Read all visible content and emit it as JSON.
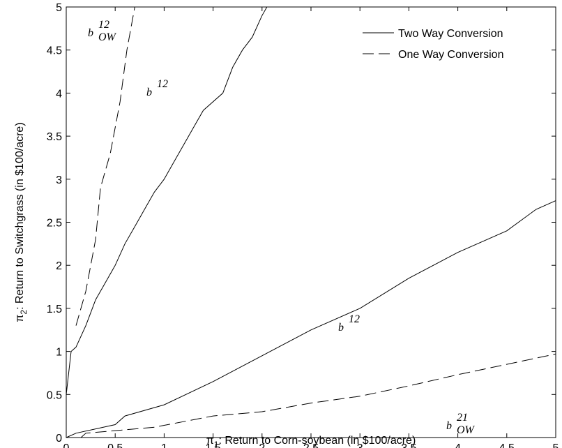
{
  "chart_data": {
    "type": "line",
    "xlabel": {
      "symbol": "π",
      "sub": "1",
      "text": ": Return to Corn-soybean (in $100/acre)"
    },
    "ylabel": {
      "symbol": "π",
      "sub": "2",
      "text": ": Return to Switchgrass (in $100/acre)"
    },
    "xlim": [
      0,
      5
    ],
    "ylim": [
      0,
      5
    ],
    "xticks": [
      0,
      0.5,
      1,
      1.5,
      2,
      2.5,
      3,
      3.5,
      4,
      4.5,
      5
    ],
    "yticks": [
      0,
      0.5,
      1,
      1.5,
      2,
      2.5,
      3,
      3.5,
      4,
      4.5,
      5
    ],
    "grid": false,
    "legend": "upper right",
    "series": [
      {
        "name": "Two Way Conversion",
        "color": "#000000",
        "dashed": false,
        "lines": [
          {
            "x": [
              0,
              0.05,
              0.1,
              0.2,
              0.3,
              0.4,
              0.5,
              0.6,
              0.7,
              0.8,
              0.9,
              1.0,
              1.1,
              1.2,
              1.3,
              1.4,
              1.6,
              1.7,
              1.8,
              1.9,
              2.0,
              2.05
            ],
            "y": [
              0.5,
              1.0,
              1.05,
              1.3,
              1.6,
              1.8,
              2.0,
              2.25,
              2.45,
              2.65,
              2.85,
              3.0,
              3.2,
              3.4,
              3.6,
              3.8,
              4.0,
              4.3,
              4.5,
              4.65,
              4.9,
              5.0
            ]
          },
          {
            "x": [
              0,
              0.1,
              0.5,
              0.6,
              1.0,
              1.5,
              2.0,
              2.5,
              3.0,
              3.5,
              4.0,
              4.5,
              4.8,
              5.0
            ],
            "y": [
              0,
              0.05,
              0.15,
              0.25,
              0.38,
              0.65,
              0.95,
              1.25,
              1.5,
              1.85,
              2.15,
              2.4,
              2.65,
              2.75
            ]
          }
        ]
      },
      {
        "name": "One Way Conversion",
        "color": "#000000",
        "dashed": true,
        "lines": [
          {
            "x": [
              0.1,
              0.2,
              0.3,
              0.35,
              0.45,
              0.55,
              0.62,
              0.7
            ],
            "y": [
              1.3,
              1.7,
              2.3,
              2.9,
              3.3,
              3.9,
              4.5,
              5.0
            ]
          },
          {
            "x": [
              0.15,
              0.2,
              0.9,
              1.5,
              2.0,
              2.5,
              3.0,
              3.5,
              4.0,
              4.5,
              5.0
            ],
            "y": [
              0,
              0.05,
              0.12,
              0.25,
              0.3,
              0.4,
              0.48,
              0.6,
              0.73,
              0.85,
              0.97
            ]
          }
        ]
      }
    ],
    "annotations": [
      {
        "text": "b",
        "sup": "12",
        "sub": "OW"
      },
      {
        "text": "b",
        "sup": "12"
      },
      {
        "text": "b",
        "sup": "12"
      },
      {
        "text": "b",
        "sup": "21",
        "sub": "OW"
      }
    ]
  }
}
